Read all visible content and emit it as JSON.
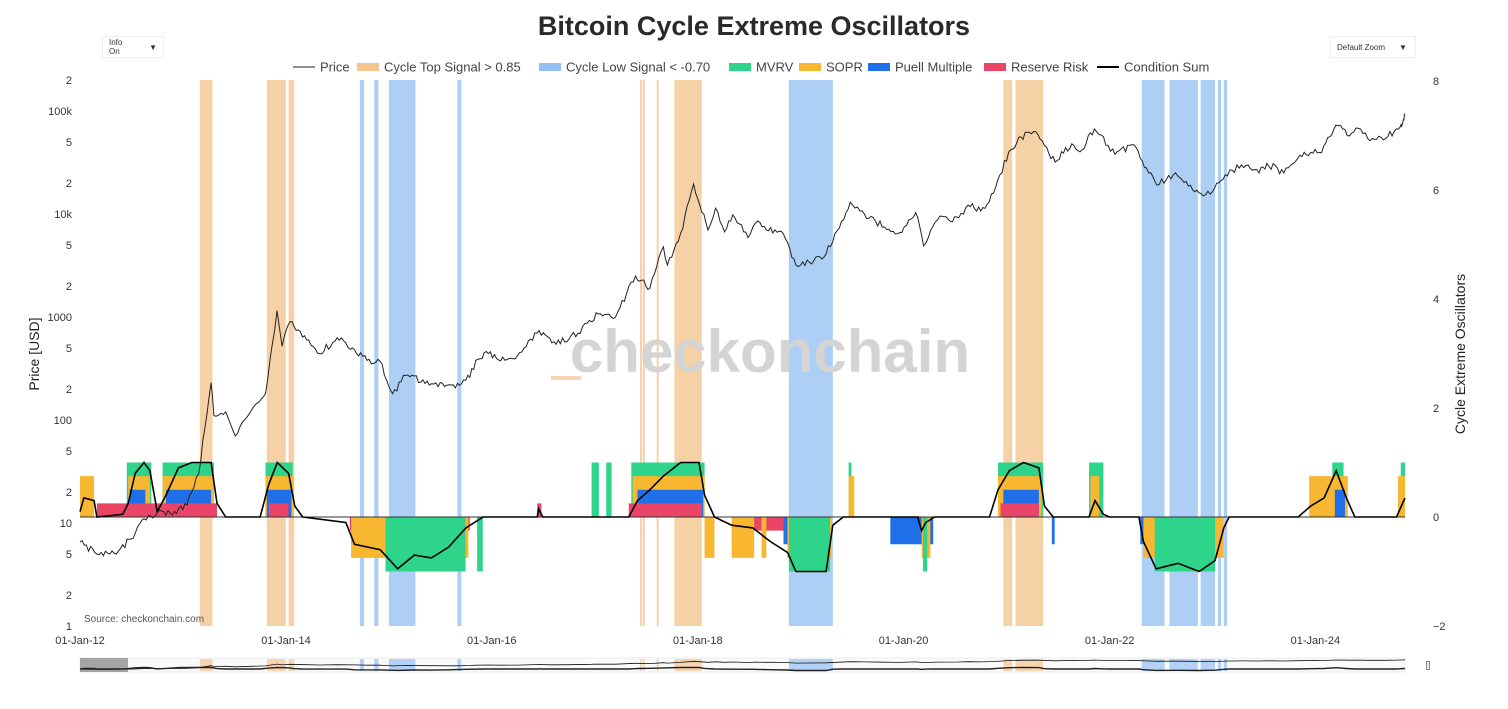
{
  "header": {
    "title": "Bitcoin Cycle Extreme Oscillators"
  },
  "controls": {
    "info_label": "Info On",
    "zoom_label": "Default Zoom",
    "caret": "▼"
  },
  "watermark": "checkonchain",
  "source": "Source: checkonchain.com",
  "colors": {
    "price": "#222222",
    "cycle_top": "#f5c590",
    "cycle_low": "#93bff2",
    "mvrv": "#2ed48a",
    "sopr": "#f7b731",
    "puell": "#1f6fe8",
    "reserve_risk": "#ea4467",
    "condition_sum": "#000000"
  },
  "chart_data": {
    "type": "line",
    "title": "Bitcoin Cycle Extreme Oscillators",
    "legend": {
      "placement": "top",
      "entries": [
        "Price",
        "Cycle Top Signal > 0.85",
        "Cycle Low Signal < -0.70",
        "MVRV",
        "SOPR",
        "Puell Multiple",
        "Reserve Risk",
        "Condition Sum"
      ]
    },
    "x_axis": {
      "type": "date",
      "range": [
        "2012-01-01",
        "2024-10-30"
      ],
      "tick_labels": [
        "01-Jan-12",
        "01-Jan-14",
        "01-Jan-16",
        "01-Jan-18",
        "01-Jan-20",
        "01-Jan-22",
        "01-Jan-24"
      ]
    },
    "y_left": {
      "label": "Price [USD]",
      "scale": "log",
      "range": [
        1,
        200000
      ],
      "tick_labels": [
        "1",
        "2",
        "5",
        "10",
        "2",
        "5",
        "100",
        "2",
        "5",
        "1000",
        "2",
        "5",
        "10k",
        "2",
        "5",
        "100k",
        "2"
      ]
    },
    "y_right": {
      "label": "Cycle Extreme Oscillators",
      "range": [
        -2,
        8
      ],
      "tick_labels": [
        "−2",
        "0",
        "2",
        "4",
        "6",
        "8"
      ]
    },
    "grid": false,
    "price_series": {
      "name": "Price",
      "points": [
        [
          "2012-01-01",
          6.5
        ],
        [
          "2012-03-01",
          5.0
        ],
        [
          "2012-05-01",
          5.1
        ],
        [
          "2012-07-01",
          7.0
        ],
        [
          "2012-08-15",
          11.0
        ],
        [
          "2012-10-01",
          12.5
        ],
        [
          "2012-12-01",
          13.0
        ],
        [
          "2013-01-15",
          15.0
        ],
        [
          "2013-02-25",
          30.0
        ],
        [
          "2013-04-10",
          230.0
        ],
        [
          "2013-04-20",
          110.0
        ],
        [
          "2013-06-01",
          120.0
        ],
        [
          "2013-07-05",
          70.0
        ],
        [
          "2013-09-01",
          125.0
        ],
        [
          "2013-10-20",
          180.0
        ],
        [
          "2013-11-30",
          1150.0
        ],
        [
          "2013-12-18",
          520.0
        ],
        [
          "2014-01-15",
          900.0
        ],
        [
          "2014-03-15",
          600.0
        ],
        [
          "2014-05-01",
          440.0
        ],
        [
          "2014-07-01",
          630.0
        ],
        [
          "2014-09-01",
          480.0
        ],
        [
          "2014-10-15",
          380.0
        ],
        [
          "2014-12-01",
          370.0
        ],
        [
          "2015-01-14",
          180.0
        ],
        [
          "2015-03-01",
          270.0
        ],
        [
          "2015-06-01",
          225.0
        ],
        [
          "2015-08-25",
          205.0
        ],
        [
          "2015-10-15",
          260.0
        ],
        [
          "2015-11-05",
          380.0
        ],
        [
          "2015-12-20",
          440.0
        ],
        [
          "2016-02-01",
          375.0
        ],
        [
          "2016-04-01",
          420.0
        ],
        [
          "2016-06-17",
          740.0
        ],
        [
          "2016-08-01",
          560.0
        ],
        [
          "2016-10-01",
          610.0
        ],
        [
          "2016-12-20",
          900.0
        ],
        [
          "2017-01-05",
          1100.0
        ],
        [
          "2017-03-15",
          1000.0
        ],
        [
          "2017-05-25",
          2500.0
        ],
        [
          "2017-07-15",
          1900.0
        ],
        [
          "2017-09-01",
          4800.0
        ],
        [
          "2017-09-15",
          3200.0
        ],
        [
          "2017-11-01",
          6500.0
        ],
        [
          "2017-12-17",
          19500.0
        ],
        [
          "2018-02-06",
          7000.0
        ],
        [
          "2018-03-05",
          11400.0
        ],
        [
          "2018-04-06",
          6700.0
        ],
        [
          "2018-05-05",
          9800.0
        ],
        [
          "2018-06-28",
          5900.0
        ],
        [
          "2018-07-25",
          8200.0
        ],
        [
          "2018-09-01",
          7000.0
        ],
        [
          "2018-11-01",
          6400.0
        ],
        [
          "2018-12-15",
          3200.0
        ],
        [
          "2019-02-01",
          3400.0
        ],
        [
          "2019-04-01",
          4100.0
        ],
        [
          "2019-06-26",
          13000.0
        ],
        [
          "2019-08-15",
          10000.0
        ],
        [
          "2019-10-25",
          7500.0
        ],
        [
          "2019-12-18",
          6600.0
        ],
        [
          "2020-02-13",
          10300.0
        ],
        [
          "2020-03-12",
          4900.0
        ],
        [
          "2020-05-01",
          8800.0
        ],
        [
          "2020-07-15",
          9200.0
        ],
        [
          "2020-08-17",
          12200.0
        ],
        [
          "2020-10-01",
          10700.0
        ],
        [
          "2020-11-15",
          16000.0
        ],
        [
          "2021-01-08",
          40000.0
        ],
        [
          "2021-02-20",
          56000.0
        ],
        [
          "2021-04-14",
          63000.0
        ],
        [
          "2021-06-22",
          32000.0
        ],
        [
          "2021-08-20",
          48000.0
        ],
        [
          "2021-09-25",
          42000.0
        ],
        [
          "2021-11-08",
          67000.0
        ],
        [
          "2022-01-20",
          38000.0
        ],
        [
          "2022-03-28",
          47000.0
        ],
        [
          "2022-05-12",
          28000.0
        ],
        [
          "2022-06-18",
          19000.0
        ],
        [
          "2022-08-15",
          24000.0
        ],
        [
          "2022-10-15",
          19000.0
        ],
        [
          "2022-11-21",
          15800.0
        ],
        [
          "2023-01-01",
          16500.0
        ],
        [
          "2023-02-15",
          24000.0
        ],
        [
          "2023-04-14",
          30000.0
        ],
        [
          "2023-06-15",
          25000.0
        ],
        [
          "2023-07-13",
          31000.0
        ],
        [
          "2023-09-11",
          25000.0
        ],
        [
          "2023-10-30",
          34500.0
        ],
        [
          "2023-12-31",
          42500.0
        ],
        [
          "2024-01-23",
          39500.0
        ],
        [
          "2024-03-14",
          73000.0
        ],
        [
          "2024-05-01",
          57500.0
        ],
        [
          "2024-06-01",
          68000.0
        ],
        [
          "2024-07-05",
          54000.0
        ],
        [
          "2024-08-05",
          53000.0
        ],
        [
          "2024-09-06",
          54000.0
        ],
        [
          "2024-10-15",
          67000.0
        ],
        [
          "2024-10-30",
          72000.0
        ],
        [
          "2024-11-01",
          70000.0
        ],
        [
          "2024-11-06",
          76000.0
        ],
        [
          "2024-11-10",
          82000.0
        ],
        [
          "2024-11-14",
          90000.0
        ]
      ]
    },
    "cycle_top_periods": [
      [
        "2013-03-01",
        "2013-04-15"
      ],
      [
        "2013-10-25",
        "2013-12-31"
      ],
      [
        "2014-01-10",
        "2014-01-30"
      ],
      [
        "2017-06-10",
        "2017-06-16"
      ],
      [
        "2017-06-20",
        "2017-06-26"
      ],
      [
        "2017-08-08",
        "2017-08-14"
      ],
      [
        "2017-10-10",
        "2018-01-15"
      ],
      [
        "2020-12-20",
        "2021-01-20"
      ],
      [
        "2021-02-01",
        "2021-05-10"
      ]
    ],
    "cycle_low_periods": [
      [
        "2014-09-20",
        "2014-10-05"
      ],
      [
        "2014-11-10",
        "2014-11-25"
      ],
      [
        "2015-01-01",
        "2015-04-05"
      ],
      [
        "2015-09-01",
        "2015-09-15"
      ],
      [
        "2018-11-20",
        "2019-04-25"
      ],
      [
        "2022-04-25",
        "2022-07-15"
      ],
      [
        "2022-08-01",
        "2022-11-10"
      ],
      [
        "2022-11-20",
        "2023-01-10"
      ],
      [
        "2023-01-20",
        "2023-02-01"
      ],
      [
        "2023-02-10",
        "2023-02-22"
      ]
    ],
    "oscillators_positive": {
      "mvrv": [
        [
          "2012-06-15",
          "2012-09-10"
        ],
        [
          "2012-10-20",
          "2013-04-20"
        ],
        [
          "2013-10-20",
          "2014-01-25"
        ],
        [
          "2016-12-20",
          "2017-01-15"
        ],
        [
          "2017-02-10",
          "2017-03-01"
        ],
        [
          "2017-05-10",
          "2018-01-25"
        ],
        [
          "2019-06-20",
          "2019-06-30"
        ],
        [
          "2020-12-01",
          "2021-05-10"
        ],
        [
          "2021-10-20",
          "2021-12-10"
        ],
        [
          "2024-03-01",
          "2024-04-10"
        ],
        [
          "2024-10-30",
          "2024-11-14"
        ]
      ],
      "sopr": [
        [
          "2012-01-01",
          "2012-02-20"
        ],
        [
          "2012-06-20",
          "2012-09-05"
        ],
        [
          "2012-10-20",
          "2013-04-20"
        ],
        [
          "2013-10-20",
          "2014-01-28"
        ],
        [
          "2017-05-15",
          "2018-01-25"
        ],
        [
          "2019-06-20",
          "2019-07-10"
        ],
        [
          "2020-12-01",
          "2021-05-05"
        ],
        [
          "2021-10-25",
          "2021-11-25"
        ],
        [
          "2023-12-10",
          "2024-04-25"
        ],
        [
          "2024-10-20",
          "2024-11-14"
        ]
      ],
      "puell": [
        [
          "2012-06-25",
          "2012-08-20"
        ],
        [
          "2012-11-01",
          "2013-04-10"
        ],
        [
          "2013-10-25",
          "2014-01-20"
        ],
        [
          "2017-06-01",
          "2018-01-20"
        ],
        [
          "2020-12-20",
          "2021-04-25"
        ],
        [
          "2024-03-10",
          "2024-04-15"
        ]
      ],
      "reserve_risk": [
        [
          "2012-03-01",
          "2013-05-01"
        ],
        [
          "2013-11-01",
          "2014-01-10"
        ],
        [
          "2016-06-10",
          "2016-06-25"
        ],
        [
          "2017-05-01",
          "2018-01-15"
        ],
        [
          "2020-12-10",
          "2021-04-25"
        ]
      ]
    },
    "oscillators_negative": {
      "reserve_risk": [
        [
          "2014-08-15",
          "2015-10-15"
        ],
        [
          "2018-07-15",
          "2019-04-20"
        ],
        [
          "2020-02-25",
          "2020-04-10"
        ],
        [
          "2022-04-20",
          "2023-01-05"
        ]
      ],
      "puell": [
        [
          "2014-08-20",
          "2015-08-20"
        ],
        [
          "2018-11-01",
          "2019-04-01"
        ],
        [
          "2019-11-15",
          "2020-04-15"
        ],
        [
          "2021-06-10",
          "2021-06-20"
        ],
        [
          "2022-04-20",
          "2023-02-05"
        ]
      ],
      "sopr": [
        [
          "2014-08-20",
          "2015-10-10"
        ],
        [
          "2018-01-25",
          "2018-03-01"
        ],
        [
          "2018-05-01",
          "2018-07-20"
        ],
        [
          "2018-08-15",
          "2018-09-01"
        ],
        [
          "2018-11-15",
          "2019-04-20"
        ],
        [
          "2020-03-05",
          "2020-04-05"
        ],
        [
          "2022-05-01",
          "2023-02-10"
        ]
      ],
      "mvrv": [
        [
          "2014-12-20",
          "2015-09-30"
        ],
        [
          "2015-11-10",
          "2015-11-30"
        ],
        [
          "2018-11-20",
          "2019-04-15"
        ],
        [
          "2020-03-10",
          "2020-03-25"
        ],
        [
          "2022-06-10",
          "2023-01-10"
        ]
      ]
    },
    "condition_sum": {
      "name": "Condition Sum",
      "points": [
        [
          "2012-01-01",
          0.1
        ],
        [
          "2012-01-15",
          0.35
        ],
        [
          "2012-02-20",
          0.3
        ],
        [
          "2012-03-01",
          0.0
        ],
        [
          "2012-06-01",
          0.05
        ],
        [
          "2012-06-20",
          0.25
        ],
        [
          "2012-07-15",
          0.8
        ],
        [
          "2012-08-15",
          1.0
        ],
        [
          "2012-09-05",
          0.85
        ],
        [
          "2012-10-01",
          0.1
        ],
        [
          "2012-11-01",
          0.4
        ],
        [
          "2012-12-15",
          0.9
        ],
        [
          "2013-02-01",
          1.0
        ],
        [
          "2013-04-10",
          1.0
        ],
        [
          "2013-05-01",
          0.25
        ],
        [
          "2013-06-01",
          0.0
        ],
        [
          "2013-10-01",
          0.0
        ],
        [
          "2013-11-01",
          0.6
        ],
        [
          "2013-12-01",
          1.0
        ],
        [
          "2014-01-10",
          0.8
        ],
        [
          "2014-02-01",
          0.2
        ],
        [
          "2014-03-01",
          0.0
        ],
        [
          "2014-08-01",
          -0.1
        ],
        [
          "2014-09-01",
          -0.5
        ],
        [
          "2014-12-01",
          -0.6
        ],
        [
          "2015-02-01",
          -0.95
        ],
        [
          "2015-04-01",
          -0.7
        ],
        [
          "2015-06-01",
          -0.75
        ],
        [
          "2015-08-01",
          -0.55
        ],
        [
          "2015-10-01",
          -0.2
        ],
        [
          "2015-12-01",
          0.0
        ],
        [
          "2016-06-10",
          0.0
        ],
        [
          "2016-06-15",
          0.15
        ],
        [
          "2016-06-30",
          0.0
        ],
        [
          "2017-05-01",
          0.0
        ],
        [
          "2017-06-01",
          0.3
        ],
        [
          "2017-07-15",
          0.5
        ],
        [
          "2017-09-01",
          0.75
        ],
        [
          "2017-11-01",
          1.0
        ],
        [
          "2018-01-05",
          1.0
        ],
        [
          "2018-01-25",
          0.4
        ],
        [
          "2018-03-01",
          0.0
        ],
        [
          "2018-05-01",
          -0.15
        ],
        [
          "2018-07-15",
          -0.2
        ],
        [
          "2018-09-15",
          -0.45
        ],
        [
          "2018-11-15",
          -0.65
        ],
        [
          "2018-12-15",
          -1.0
        ],
        [
          "2019-04-01",
          -1.0
        ],
        [
          "2019-04-25",
          -0.15
        ],
        [
          "2019-06-01",
          0.0
        ],
        [
          "2020-02-20",
          0.0
        ],
        [
          "2020-03-05",
          -0.25
        ],
        [
          "2020-03-20",
          -0.1
        ],
        [
          "2020-04-20",
          0.0
        ],
        [
          "2020-11-01",
          0.0
        ],
        [
          "2020-12-01",
          0.5
        ],
        [
          "2021-01-10",
          0.85
        ],
        [
          "2021-03-01",
          1.0
        ],
        [
          "2021-04-25",
          0.9
        ],
        [
          "2021-05-15",
          0.2
        ],
        [
          "2021-06-15",
          0.0
        ],
        [
          "2021-10-20",
          0.0
        ],
        [
          "2021-11-10",
          0.3
        ],
        [
          "2021-12-10",
          0.05
        ],
        [
          "2022-01-01",
          0.0
        ],
        [
          "2022-04-15",
          0.0
        ],
        [
          "2022-05-01",
          -0.45
        ],
        [
          "2022-06-15",
          -0.95
        ],
        [
          "2022-09-01",
          -0.85
        ],
        [
          "2022-11-15",
          -1.0
        ],
        [
          "2023-01-10",
          -0.8
        ],
        [
          "2023-02-10",
          -0.2
        ],
        [
          "2023-03-01",
          0.0
        ],
        [
          "2023-11-01",
          0.0
        ],
        [
          "2023-12-15",
          0.2
        ],
        [
          "2024-02-01",
          0.35
        ],
        [
          "2024-03-15",
          0.85
        ],
        [
          "2024-04-20",
          0.35
        ],
        [
          "2024-05-20",
          0.0
        ],
        [
          "2024-10-15",
          0.0
        ],
        [
          "2024-11-14",
          0.35
        ]
      ]
    }
  }
}
